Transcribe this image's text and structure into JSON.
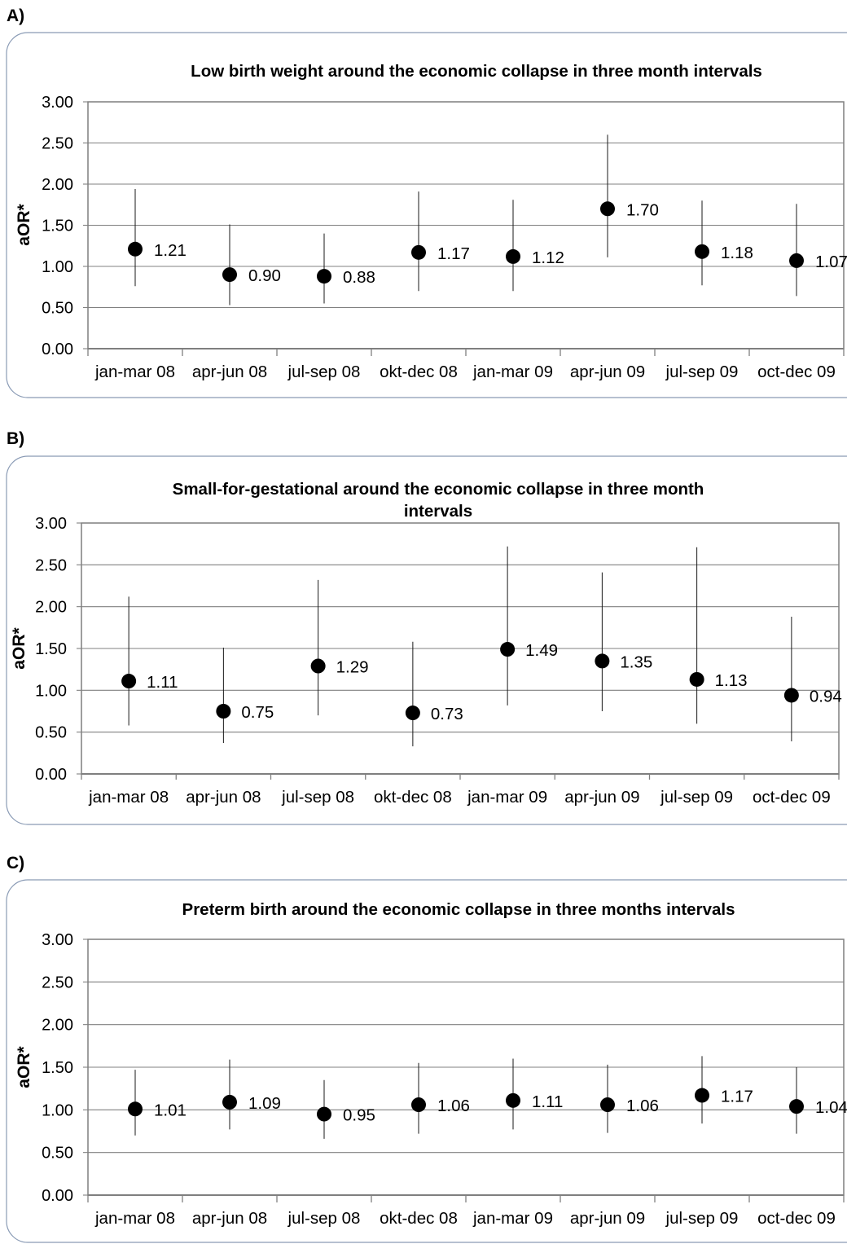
{
  "chart_data": [
    {
      "panel_label": "A)",
      "type": "scatter",
      "title": "Low birth weight around the economic collapse in three month  intervals",
      "ylabel": "aOR*",
      "xlabel": "",
      "ylim": [
        0,
        3
      ],
      "yticks": [
        "0.00",
        "0.50",
        "1.00",
        "1.50",
        "2.00",
        "2.50",
        "3.00"
      ],
      "categories": [
        "jan-mar 08",
        "apr-jun 08",
        "jul-sep 08",
        "okt-dec 08",
        "jan-mar 09",
        "apr-jun 09",
        "jul-sep 09",
        "oct-dec 09"
      ],
      "values": [
        1.21,
        0.9,
        0.88,
        1.17,
        1.12,
        1.7,
        1.18,
        1.07
      ],
      "labels": [
        "1.21",
        "0.90",
        "0.88",
        "1.17",
        "1.12",
        "1.70",
        "1.18",
        "1.07"
      ],
      "ci_low": [
        0.76,
        0.53,
        0.55,
        0.7,
        0.7,
        1.11,
        0.77,
        0.64
      ],
      "ci_high": [
        1.94,
        1.51,
        1.4,
        1.91,
        1.81,
        2.6,
        1.8,
        1.76
      ],
      "grid": true,
      "legend": "none"
    },
    {
      "panel_label": "B)",
      "type": "scatter",
      "title": "Small-for-gestational around the economic collapse in three month intervals",
      "ylabel": "aOR*",
      "xlabel": "",
      "ylim": [
        0,
        3
      ],
      "yticks": [
        "0.00",
        "0.50",
        "1.00",
        "1.50",
        "2.00",
        "2.50",
        "3.00"
      ],
      "categories": [
        "jan-mar 08",
        "apr-jun 08",
        "jul-sep 08",
        "okt-dec 08",
        "jan-mar 09",
        "apr-jun 09",
        "jul-sep 09",
        "oct-dec 09"
      ],
      "values": [
        1.11,
        0.75,
        1.29,
        0.73,
        1.49,
        1.35,
        1.13,
        0.94
      ],
      "labels": [
        "1.11",
        "0.75",
        "1.29",
        "0.73",
        "1.49",
        "1.35",
        "1.13",
        "0.94"
      ],
      "ci_low": [
        0.58,
        0.37,
        0.7,
        0.33,
        0.82,
        0.75,
        0.6,
        0.39
      ],
      "ci_high": [
        2.12,
        1.51,
        2.32,
        1.58,
        2.72,
        2.41,
        2.71,
        1.88
      ],
      "grid": true,
      "legend": "none"
    },
    {
      "panel_label": "C)",
      "type": "scatter",
      "title": "Preterm birth around the economic collapse in three months intervals",
      "ylabel": "aOR*",
      "xlabel": "",
      "ylim": [
        0,
        3
      ],
      "yticks": [
        "0.00",
        "0.50",
        "1.00",
        "1.50",
        "2.00",
        "2.50",
        "3.00"
      ],
      "categories": [
        "jan-mar 08",
        "apr-jun 08",
        "jul-sep 08",
        "okt-dec 08",
        "jan-mar 09",
        "apr-jun 09",
        "jul-sep 09",
        "oct-dec 09"
      ],
      "values": [
        1.01,
        1.09,
        0.95,
        1.06,
        1.11,
        1.06,
        1.17,
        1.04
      ],
      "labels": [
        "1.01",
        "1.09",
        "0.95",
        "1.06",
        "1.11",
        "1.06",
        "1.17",
        "1.04"
      ],
      "ci_low": [
        0.7,
        0.77,
        0.66,
        0.72,
        0.77,
        0.73,
        0.84,
        0.72
      ],
      "ci_high": [
        1.47,
        1.59,
        1.35,
        1.55,
        1.6,
        1.53,
        1.63,
        1.5
      ],
      "grid": true,
      "legend": "none"
    }
  ]
}
